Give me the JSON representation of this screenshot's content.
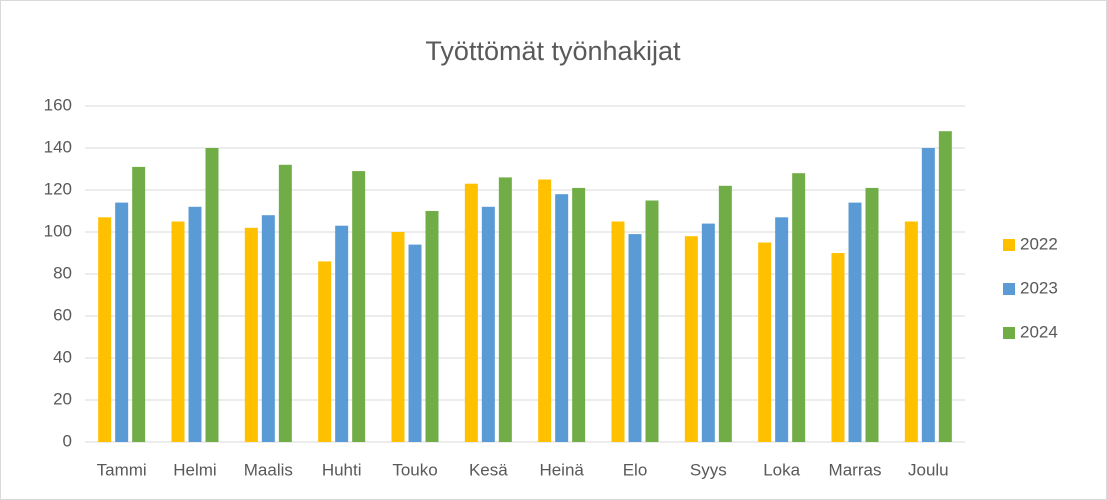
{
  "chart_data": {
    "type": "bar",
    "title": "Työttömät työnhakijat",
    "categories": [
      "Tammi",
      "Helmi",
      "Maalis",
      "Huhti",
      "Touko",
      "Kesä",
      "Heinä",
      "Elo",
      "Syys",
      "Loka",
      "Marras",
      "Joulu"
    ],
    "series": [
      {
        "name": "2022",
        "color": "#ffc000",
        "values": [
          107,
          105,
          102,
          86,
          100,
          123,
          125,
          105,
          98,
          95,
          90,
          105
        ]
      },
      {
        "name": "2023",
        "color": "#5b9bd5",
        "values": [
          114,
          112,
          108,
          103,
          94,
          112,
          118,
          99,
          104,
          107,
          114,
          140
        ]
      },
      {
        "name": "2024",
        "color": "#70ad47",
        "values": [
          131,
          140,
          132,
          129,
          110,
          126,
          121,
          115,
          122,
          128,
          121,
          148
        ]
      }
    ],
    "ylim": [
      0,
      160
    ],
    "yticks": [
      0,
      20,
      40,
      60,
      80,
      100,
      120,
      140,
      160
    ],
    "grid": true,
    "legend": "right"
  }
}
